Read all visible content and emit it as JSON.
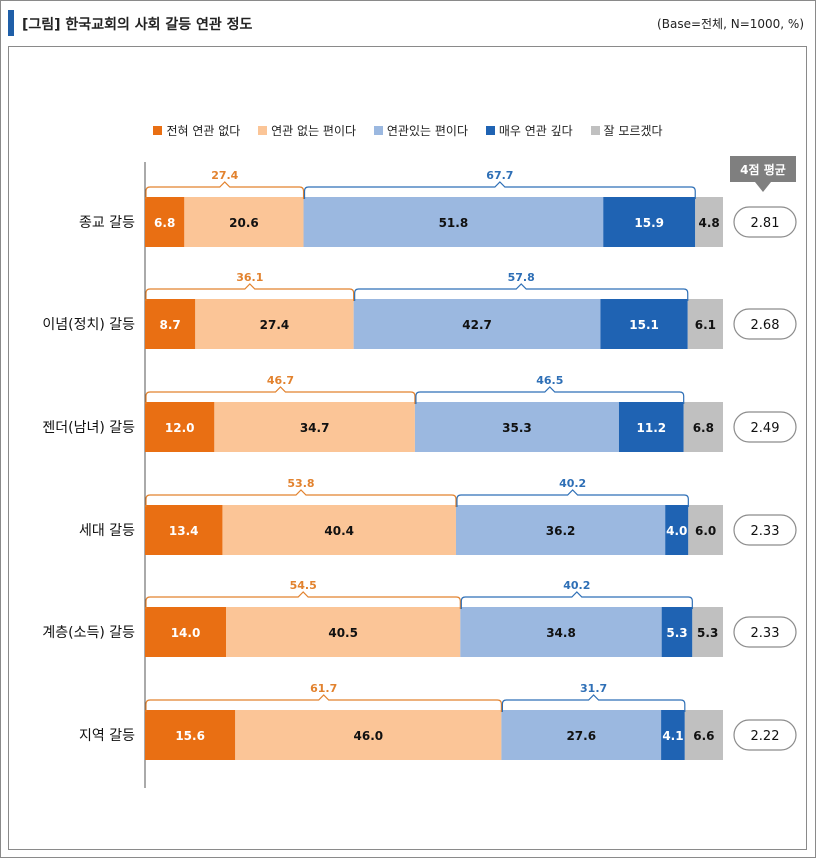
{
  "header": {
    "title": "[그림] 한국교회의 사회 갈등 연관 정도",
    "base": "(Base=전체, N=1000, %)"
  },
  "avg_badge_label": "4점 평균",
  "colors": {
    "not_at_all": "#e96f13",
    "not_much": "#fbc597",
    "somewhat": "#9bb8e0",
    "very": "#1f63b3",
    "unknown": "#c0c0c0",
    "bracket_negative": "#e2822e",
    "bracket_positive": "#2e6fb6",
    "badge": "#7f7f7f"
  },
  "chart_data": {
    "type": "bar",
    "orientation": "horizontal-stacked-100",
    "categories": [
      "종교 갈등",
      "이념(정치) 갈등",
      "젠더(남녀) 갈등",
      "세대 갈등",
      "계층(소득) 갈등",
      "지역 갈등"
    ],
    "series": [
      {
        "name": "전혀 연관 없다",
        "values": [
          6.8,
          8.7,
          12.0,
          13.4,
          14.0,
          15.6
        ],
        "labels": [
          "6.8",
          "8.7",
          "12.0",
          "13.4",
          "14.0",
          "15.6"
        ]
      },
      {
        "name": "연관 없는 편이다",
        "values": [
          20.6,
          27.4,
          34.7,
          40.4,
          40.5,
          46.0
        ],
        "labels": [
          "20.6",
          "27.4",
          "34.7",
          "40.4",
          "40.5",
          "46.0"
        ]
      },
      {
        "name": "연관있는 편이다",
        "values": [
          51.8,
          42.7,
          35.3,
          36.2,
          34.8,
          27.6
        ],
        "labels": [
          "51.8",
          "42.7",
          "35.3",
          "36.2",
          "34.8",
          "27.6"
        ]
      },
      {
        "name": "매우 연관 깊다",
        "values": [
          15.9,
          15.1,
          11.2,
          4.0,
          5.3,
          4.1
        ],
        "labels": [
          "15.9",
          "15.1",
          "11.2",
          "4.0",
          "5.3",
          "4.1"
        ]
      },
      {
        "name": "잘 모르겠다",
        "values": [
          4.8,
          6.1,
          6.8,
          6.0,
          5.3,
          6.6
        ],
        "labels": [
          "4.8",
          "6.1",
          "6.8",
          "6.0",
          "5.3",
          "6.6"
        ]
      }
    ],
    "negative_totals": [
      "27.4",
      "36.1",
      "46.7",
      "53.8",
      "54.5",
      "61.7"
    ],
    "positive_totals": [
      "67.7",
      "57.8",
      "46.5",
      "40.2",
      "40.2",
      "31.7"
    ],
    "averages": [
      "2.81",
      "2.68",
      "2.49",
      "2.33",
      "2.33",
      "2.22"
    ],
    "legend_position": "top-center",
    "grid": false
  }
}
